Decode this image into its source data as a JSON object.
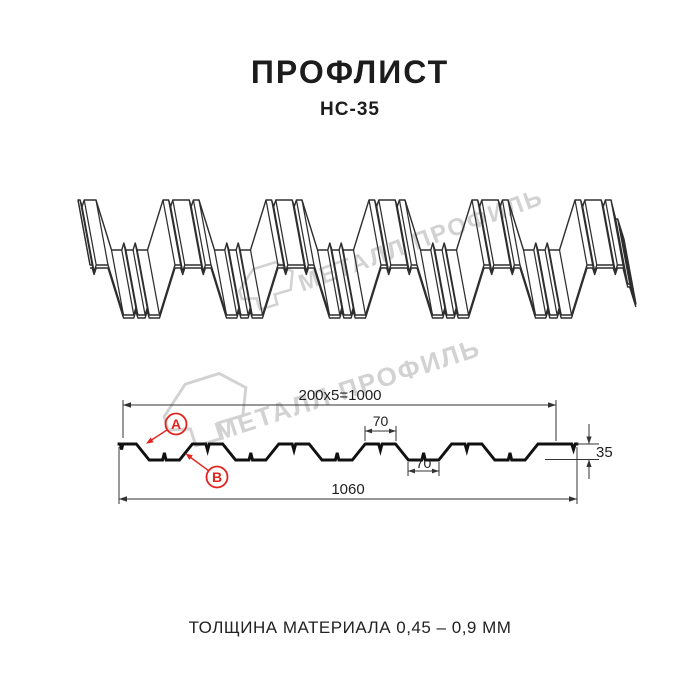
{
  "header": {
    "title": "ПРОФЛИСТ",
    "subtitle": "НС-35"
  },
  "watermark": {
    "brand": "МЕТАЛЛ ПРОФИЛЬ"
  },
  "section": {
    "dims": {
      "top_width": "200x5=1000",
      "flange_width": "70",
      "valley_width": "70",
      "height": "35",
      "total_width": "1060"
    },
    "callouts": {
      "a": "A",
      "b": "B"
    }
  },
  "footer": {
    "thickness": "ТОЛЩИНА МАТЕРИАЛА 0,45 – 0,9 ММ"
  },
  "colors": {
    "accent_red": "#e2241f",
    "line_dark": "#2e2e2e",
    "profile_black": "#111111",
    "watermark_gray": "#d2d2d2"
  }
}
